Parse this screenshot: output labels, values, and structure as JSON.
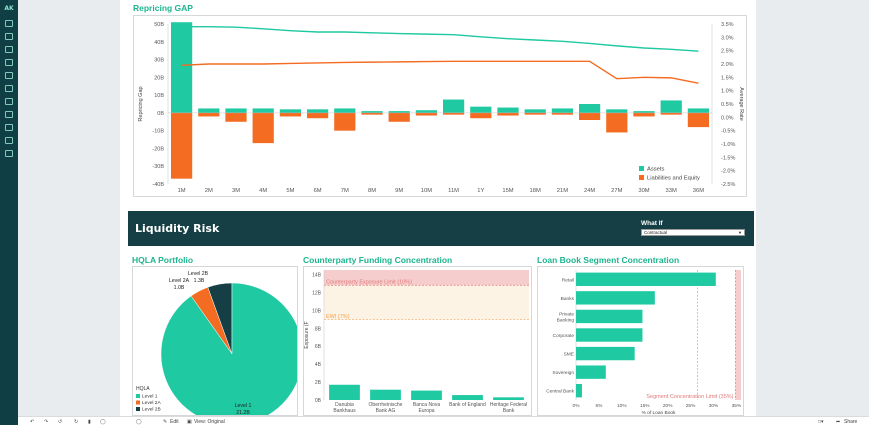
{
  "app": {
    "logo": "AK"
  },
  "bottombar": {
    "edit": "Edit",
    "view": "View: Original",
    "share": "Share"
  },
  "whatif": {
    "label": "What If",
    "selected": "Contractual"
  },
  "liquidity": {
    "title": "Liquidity Risk"
  },
  "chart_data": [
    {
      "id": "repricing",
      "type": "bar",
      "title": "Repricing GAP",
      "ylabel": "Repricing Gap",
      "y2label": "Average Rate",
      "categories": [
        "1M",
        "2M",
        "3M",
        "4M",
        "5M",
        "6M",
        "7M",
        "8M",
        "9M",
        "10M",
        "11M",
        "1Y",
        "15M",
        "18M",
        "21M",
        "24M",
        "27M",
        "30M",
        "33M",
        "36M"
      ],
      "y_ticks": [
        "-40B",
        "-30B",
        "-20B",
        "-10B",
        "0B",
        "10B",
        "20B",
        "30B",
        "40B",
        "50B"
      ],
      "y2_ticks": [
        "-2.5%",
        "-2.0%",
        "-1.5%",
        "-1.0%",
        "-0.5%",
        "0.0%",
        "0.5%",
        "1.0%",
        "1.5%",
        "2.0%",
        "2.5%",
        "3.0%",
        "3.5%"
      ],
      "ylim": [
        -40,
        50
      ],
      "y2lim": [
        -2.5,
        3.5
      ],
      "bar_series": [
        {
          "name": "Assets",
          "color": "#1fc9a1",
          "values": [
            51,
            2.5,
            2.5,
            2.5,
            2,
            2,
            2.5,
            1,
            1,
            1.5,
            7.5,
            3.5,
            3,
            2,
            2.5,
            5,
            2,
            1,
            7,
            2.5
          ]
        },
        {
          "name": "Liabilities and Equity",
          "color": "#f36c21",
          "values": [
            -37,
            -2,
            -5,
            -17,
            -2,
            -3,
            -10,
            -1,
            -5,
            -1.5,
            -1,
            -3,
            -1.5,
            -1,
            -1,
            -4,
            -11,
            -2,
            -1,
            -8
          ]
        }
      ],
      "line_series": [
        {
          "color": "#1fc9a1",
          "values": [
            3.4,
            3.4,
            3.38,
            3.32,
            3.25,
            3.2,
            3.2,
            3.17,
            3.14,
            3.12,
            3.1,
            3.02,
            2.95,
            2.9,
            2.85,
            2.77,
            2.68,
            2.6,
            2.55,
            2.48
          ]
        },
        {
          "color": "#f36c21",
          "values": [
            1.95,
            2.0,
            2.0,
            2.0,
            2.02,
            2.04,
            2.06,
            2.07,
            2.08,
            2.09,
            2.1,
            2.1,
            2.1,
            2.1,
            2.1,
            2.1,
            1.45,
            1.5,
            1.48,
            1.28
          ]
        }
      ],
      "legend": [
        "Assets",
        "Liabilities and Equity"
      ],
      "legend_position": "bottom-right"
    },
    {
      "id": "hqla",
      "type": "pie",
      "title": "HQLA Portfolio",
      "legend_title": "HQLA",
      "slices": [
        {
          "name": "Level 1",
          "value": 21.2,
          "label": "21.2B",
          "color": "#1fc9a1"
        },
        {
          "name": "Level 2A",
          "value": 1.0,
          "label": "1.0B",
          "color": "#f36c21"
        },
        {
          "name": "Level 2B",
          "value": 1.3,
          "label": "1.3B",
          "color": "#153f45"
        }
      ],
      "legend_position": "bottom-left"
    },
    {
      "id": "counterparty",
      "type": "bar",
      "title": "Counterparty Funding Concentration",
      "ylabel": "Exposure (F",
      "categories": [
        [
          "Danubia",
          "Bankhaus"
        ],
        [
          "Oberrheinische",
          "Bank AG"
        ],
        [
          "Banca Nova",
          "Europa"
        ],
        [
          "Bank of England"
        ],
        [
          "Heritage Federal",
          "Bank"
        ]
      ],
      "values": [
        1.7,
        1.15,
        1.05,
        0.55,
        0.3
      ],
      "y_ticks": [
        "0B",
        "2B",
        "4B",
        "6B",
        "8B",
        "10B",
        "12B",
        "14B"
      ],
      "ylim": [
        0,
        14.5
      ],
      "color": "#1fc9a1",
      "annotations": [
        {
          "label": "Counterparty Exposure Limit (10%)",
          "value": 12.8
        },
        {
          "label": "EWI (7%)",
          "value": 9.0
        }
      ]
    },
    {
      "id": "loanbook",
      "type": "bar",
      "title": "Loan Book Segment Concentration",
      "xlabel": "% of Loan Book",
      "categories": [
        "Retail",
        "Banks",
        [
          "Private",
          "Banking"
        ],
        "Corporate",
        "SME",
        "Sovereign",
        "Central Bank"
      ],
      "values": [
        30.5,
        17.2,
        14.5,
        14.5,
        12.8,
        6.5,
        1.3
      ],
      "x_ticks": [
        "0%",
        "5%",
        "10%",
        "15%",
        "20%",
        "25%",
        "30%",
        "35%"
      ],
      "xlim": [
        0,
        36
      ],
      "color": "#1fc9a1",
      "annotations": [
        {
          "label": "Segment Concentration Limit (35%)",
          "value": 34.8
        },
        {
          "value": 26.5
        }
      ]
    }
  ]
}
